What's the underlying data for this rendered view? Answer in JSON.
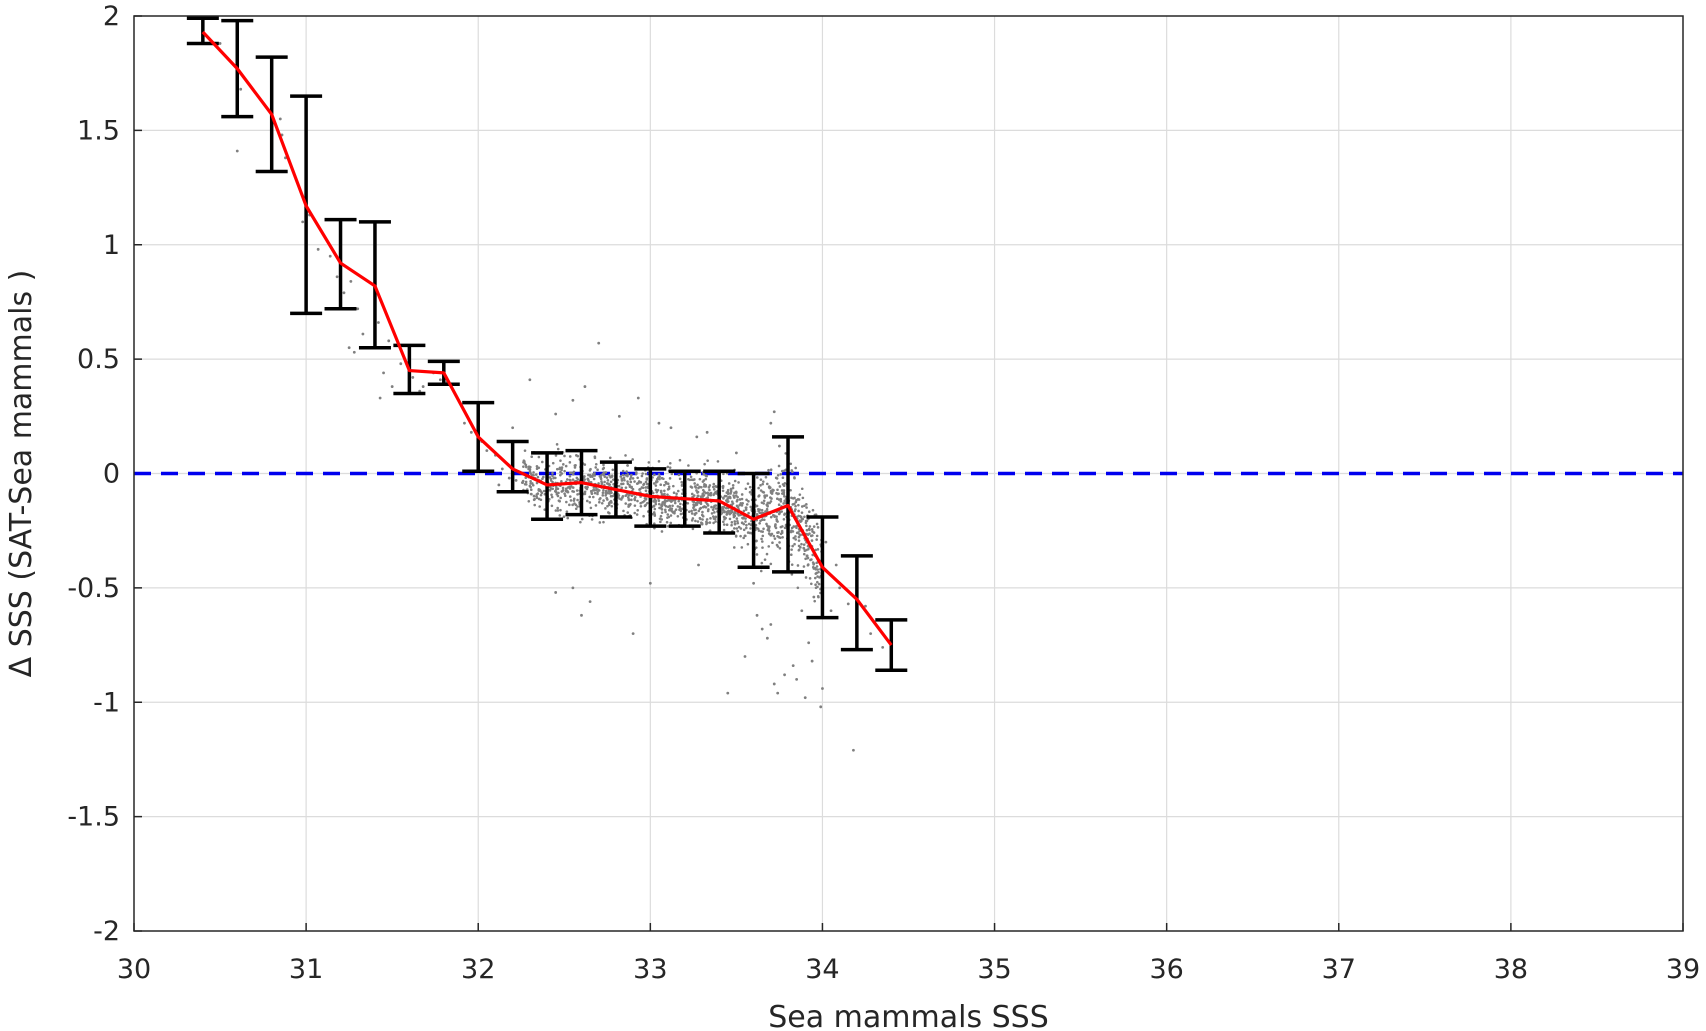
{
  "chart_data": {
    "type": "scatter",
    "xlabel": "Sea mammals  SSS",
    "ylabel": "Δ SSS (SAT-Sea mammals )",
    "xlim": [
      30,
      39
    ],
    "ylim": [
      -2,
      2
    ],
    "x_ticks": [
      30,
      31,
      32,
      33,
      34,
      35,
      36,
      37,
      38,
      39
    ],
    "y_ticks": [
      -2,
      -1.5,
      -1,
      -0.5,
      0,
      0.5,
      1,
      1.5,
      2
    ],
    "y_tick_labels": [
      "-2",
      "-1.5",
      "-1",
      "-0.5",
      "0",
      "0.5",
      "1",
      "1.5",
      "2"
    ],
    "grid": true,
    "zero_line": {
      "y": 0,
      "color": "#0000ee",
      "style": "dashed"
    },
    "scatter_color": "#808080",
    "mean_line_color": "#ff0000",
    "errorbar_color": "#000000",
    "scatter_points": [
      [
        30.62,
        1.68
      ],
      [
        30.85,
        1.55
      ],
      [
        30.86,
        1.48
      ],
      [
        30.6,
        1.41
      ],
      [
        30.5,
        1.88
      ],
      [
        30.98,
        1.1
      ],
      [
        30.88,
        1.38
      ],
      [
        31.02,
        1.13
      ],
      [
        31.07,
        0.98
      ],
      [
        31.14,
        0.95
      ],
      [
        31.18,
        0.86
      ],
      [
        31.22,
        0.79
      ],
      [
        31.26,
        0.84
      ],
      [
        31.3,
        0.72
      ],
      [
        31.33,
        0.61
      ],
      [
        31.25,
        0.55
      ],
      [
        31.28,
        0.53
      ],
      [
        31.42,
        0.66
      ],
      [
        31.48,
        0.58
      ],
      [
        31.55,
        0.48
      ],
      [
        31.45,
        0.44
      ],
      [
        31.5,
        0.38
      ],
      [
        31.43,
        0.33
      ],
      [
        31.62,
        0.42
      ],
      [
        31.68,
        0.38
      ],
      [
        31.66,
        0.36
      ],
      [
        31.74,
        0.44
      ],
      [
        31.78,
        0.41
      ],
      [
        31.82,
        0.4
      ],
      [
        31.92,
        0.22
      ],
      [
        31.96,
        0.18
      ],
      [
        32.02,
        0.14
      ],
      [
        32.05,
        0.1
      ],
      [
        32.0,
        0.07
      ],
      [
        32.1,
        0.08
      ],
      [
        32.14,
        0.02
      ],
      [
        32.18,
        -0.02
      ],
      [
        32.12,
        -0.05
      ],
      [
        32.22,
        -0.03
      ],
      [
        32.2,
        0.2
      ],
      [
        32.3,
        0.41
      ],
      [
        32.45,
        0.26
      ],
      [
        32.55,
        0.32
      ],
      [
        32.62,
        0.38
      ],
      [
        32.7,
        0.57
      ],
      [
        32.82,
        0.25
      ],
      [
        32.93,
        0.33
      ],
      [
        33.05,
        0.22
      ],
      [
        33.12,
        0.2
      ],
      [
        33.27,
        0.16
      ],
      [
        33.33,
        0.18
      ],
      [
        33.5,
        0.09
      ],
      [
        33.72,
        0.27
      ],
      [
        33.75,
        0.12
      ],
      [
        33.7,
        0.22
      ],
      [
        32.65,
        -0.56
      ],
      [
        32.6,
        -0.62
      ],
      [
        32.55,
        -0.5
      ],
      [
        32.9,
        -0.7
      ],
      [
        33.0,
        -0.48
      ],
      [
        32.45,
        -0.52
      ],
      [
        33.28,
        -0.4
      ],
      [
        33.6,
        -0.48
      ],
      [
        33.62,
        -0.62
      ],
      [
        33.65,
        -0.68
      ],
      [
        33.68,
        -0.72
      ],
      [
        33.7,
        -0.66
      ],
      [
        33.55,
        -0.8
      ],
      [
        33.72,
        -0.92
      ],
      [
        33.74,
        -0.96
      ],
      [
        33.78,
        -0.88
      ],
      [
        33.83,
        -0.84
      ],
      [
        33.85,
        -0.9
      ],
      [
        33.9,
        -0.98
      ],
      [
        33.92,
        -0.74
      ],
      [
        33.94,
        -0.82
      ],
      [
        33.99,
        -1.02
      ],
      [
        34.0,
        -0.94
      ],
      [
        33.88,
        -0.6
      ],
      [
        33.95,
        -0.54
      ],
      [
        34.05,
        -0.6
      ],
      [
        34.1,
        -0.5
      ],
      [
        34.15,
        -0.57
      ],
      [
        33.45,
        -0.96
      ],
      [
        34.18,
        -1.21
      ],
      [
        34.02,
        -0.3
      ],
      [
        34.08,
        -0.4
      ],
      [
        34.2,
        -0.66
      ],
      [
        34.28,
        -0.7
      ],
      [
        34.35,
        -0.76
      ],
      [
        34.25,
        -0.58
      ]
    ],
    "cloud": {
      "x_range": [
        32.25,
        34.0
      ],
      "count": 1500
    },
    "mean_line": {
      "x": [
        30.4,
        30.6,
        30.8,
        31.0,
        31.2,
        31.4,
        31.6,
        31.8,
        32.0,
        32.2,
        32.4,
        32.6,
        32.8,
        33.0,
        33.2,
        33.4,
        33.6,
        33.8,
        34.0,
        34.2,
        34.4
      ],
      "y": [
        1.93,
        1.77,
        1.57,
        1.17,
        0.92,
        0.82,
        0.45,
        0.44,
        0.16,
        0.02,
        -0.05,
        -0.04,
        -0.07,
        -0.1,
        -0.11,
        -0.12,
        -0.2,
        -0.14,
        -0.41,
        -0.55,
        -0.75
      ]
    },
    "error_bars": [
      {
        "x": 30.4,
        "lower": 1.88,
        "upper": 1.99
      },
      {
        "x": 30.6,
        "lower": 1.56,
        "upper": 1.98
      },
      {
        "x": 30.8,
        "lower": 1.32,
        "upper": 1.82
      },
      {
        "x": 31.0,
        "lower": 0.7,
        "upper": 1.65
      },
      {
        "x": 31.2,
        "lower": 0.72,
        "upper": 1.11
      },
      {
        "x": 31.4,
        "lower": 0.55,
        "upper": 1.1
      },
      {
        "x": 31.6,
        "lower": 0.35,
        "upper": 0.56
      },
      {
        "x": 31.8,
        "lower": 0.39,
        "upper": 0.49
      },
      {
        "x": 32.0,
        "lower": 0.01,
        "upper": 0.31
      },
      {
        "x": 32.2,
        "lower": -0.08,
        "upper": 0.14
      },
      {
        "x": 32.4,
        "lower": -0.2,
        "upper": 0.09
      },
      {
        "x": 32.6,
        "lower": -0.18,
        "upper": 0.1
      },
      {
        "x": 32.8,
        "lower": -0.19,
        "upper": 0.05
      },
      {
        "x": 33.0,
        "lower": -0.23,
        "upper": 0.02
      },
      {
        "x": 33.2,
        "lower": -0.23,
        "upper": 0.01
      },
      {
        "x": 33.4,
        "lower": -0.26,
        "upper": 0.01
      },
      {
        "x": 33.6,
        "lower": -0.41,
        "upper": 0.0
      },
      {
        "x": 33.8,
        "lower": -0.43,
        "upper": 0.16
      },
      {
        "x": 34.0,
        "lower": -0.63,
        "upper": -0.19
      },
      {
        "x": 34.2,
        "lower": -0.77,
        "upper": -0.36
      },
      {
        "x": 34.4,
        "lower": -0.86,
        "upper": -0.64
      }
    ]
  }
}
